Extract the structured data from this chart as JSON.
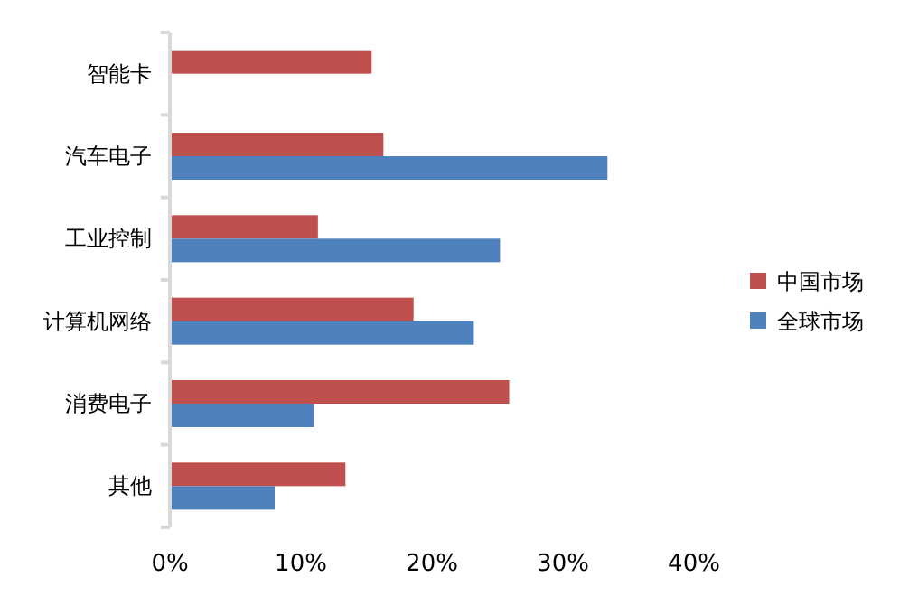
{
  "chart_data": {
    "type": "bar",
    "orientation": "horizontal",
    "categories": [
      "智能卡",
      "汽车电子",
      "工业控制",
      "计算机网络",
      "消费电子",
      "其他"
    ],
    "series": [
      {
        "name": "中国市场",
        "color": "#c0504d",
        "values": [
          15.4,
          16.3,
          11.3,
          18.6,
          25.9,
          13.4
        ]
      },
      {
        "name": "全球市场",
        "color": "#4f81bd",
        "values": [
          null,
          33.4,
          25.2,
          23.2,
          11.0,
          8.0
        ]
      }
    ],
    "xlim": [
      0,
      40
    ],
    "xticks": [
      {
        "value": 0,
        "label": "0%"
      },
      {
        "value": 10,
        "label": "10%"
      },
      {
        "value": 20,
        "label": "20%"
      },
      {
        "value": 30,
        "label": "30%"
      },
      {
        "value": 40,
        "label": "40%"
      }
    ],
    "grid": false,
    "legend": "right"
  }
}
